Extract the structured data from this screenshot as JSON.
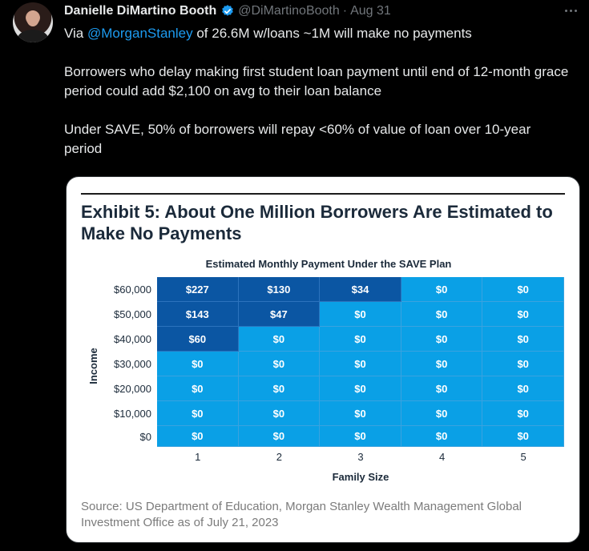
{
  "tweet": {
    "author_name": "Danielle DiMartino Booth",
    "handle": "@DiMartinoBooth",
    "separator": "·",
    "date": "Aug 31",
    "lines": {
      "l1_prefix": "Via ",
      "l1_mention": "@MorganStanley",
      "l1_suffix": " of 26.6M w/loans ~1M will make no payments",
      "l2": "Borrowers who delay making first student loan payment until end of 12-month grace period could add $2,100 on avg to their loan balance",
      "l3": "Under SAVE, 50% of borrowers will repay <60% of value of loan over 10-year period"
    }
  },
  "icons": {
    "verified": "verified-badge-icon",
    "more": "more-options-icon"
  },
  "colors": {
    "dark_cell": "#0b56a3",
    "light_cell": "#0aa0e6",
    "mention": "#1d9bf0"
  },
  "exhibit": {
    "title": "Exhibit 5: About One Million Borrowers Are Estimated to Make No Payments",
    "source": "Source: US Department of Education, Morgan Stanley Wealth Management Global Investment Office as of July 21, 2023"
  },
  "chart_data": {
    "type": "heatmap",
    "title": "Estimated Monthly Payment Under the SAVE Plan",
    "xlabel": "Family Size",
    "ylabel": "Income",
    "x_categories": [
      "1",
      "2",
      "3",
      "4",
      "5"
    ],
    "y_categories": [
      "$60,000",
      "$50,000",
      "$40,000",
      "$30,000",
      "$20,000",
      "$10,000",
      "$0"
    ],
    "cells": [
      [
        "$227",
        "$130",
        "$34",
        "$0",
        "$0"
      ],
      [
        "$143",
        "$47",
        "$0",
        "$0",
        "$0"
      ],
      [
        "$60",
        "$0",
        "$0",
        "$0",
        "$0"
      ],
      [
        "$0",
        "$0",
        "$0",
        "$0",
        "$0"
      ],
      [
        "$0",
        "$0",
        "$0",
        "$0",
        "$0"
      ],
      [
        "$0",
        "$0",
        "$0",
        "$0",
        "$0"
      ],
      [
        "$0",
        "$0",
        "$0",
        "$0",
        "$0"
      ]
    ],
    "values": [
      [
        227,
        130,
        34,
        0,
        0
      ],
      [
        143,
        47,
        0,
        0,
        0
      ],
      [
        60,
        0,
        0,
        0,
        0
      ],
      [
        0,
        0,
        0,
        0,
        0
      ],
      [
        0,
        0,
        0,
        0,
        0
      ],
      [
        0,
        0,
        0,
        0,
        0
      ],
      [
        0,
        0,
        0,
        0,
        0
      ]
    ]
  }
}
